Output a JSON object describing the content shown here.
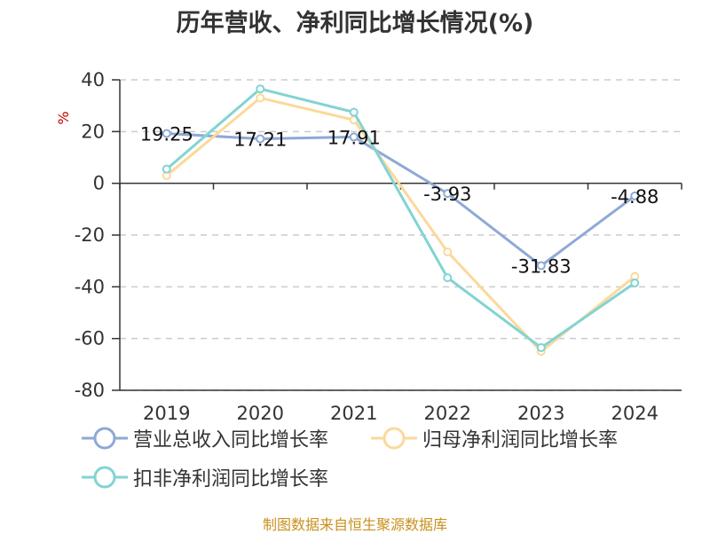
{
  "chart_data": {
    "type": "line",
    "title": "历年营收、净利同比增长情况(%)",
    "ylabel": "%",
    "categories": [
      "2019",
      "2020",
      "2021",
      "2022",
      "2023",
      "2024"
    ],
    "ylim": [
      -80,
      40
    ],
    "yticks": [
      40,
      20,
      0,
      -20,
      -40,
      -60,
      -80
    ],
    "grid": true,
    "legend_position": "bottom",
    "series": [
      {
        "name": "营业总收入同比增长率",
        "values": [
          19.25,
          17.21,
          17.91,
          -3.93,
          -31.83,
          -4.88
        ],
        "color": "#8ea9d6",
        "labels": [
          "19.25",
          "17.21",
          "17.91",
          "-3.93",
          "-31.83",
          "-4.88"
        ]
      },
      {
        "name": "归母净利润同比增长率",
        "values": [
          3.0,
          33.0,
          24.5,
          -26.5,
          -65.0,
          -36.0
        ],
        "color": "#fbd99a"
      },
      {
        "name": "扣非净利润同比增长率",
        "values": [
          5.5,
          36.5,
          27.5,
          -36.5,
          -63.5,
          -38.5
        ],
        "color": "#83d3d3"
      }
    ]
  },
  "source": "制图数据来自恒生聚源数据库"
}
